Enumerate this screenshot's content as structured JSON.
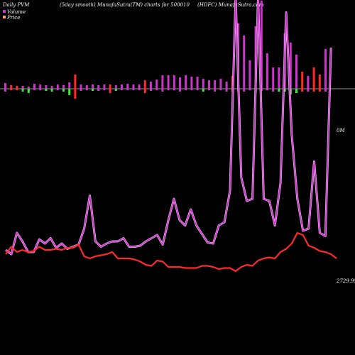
{
  "header": {
    "left": "Daily PVM",
    "center": "(5day smooth) MunafaSutra(TM) charts for 500010",
    "right": "(HDFC) MunafaSutra.com"
  },
  "legend": [
    {
      "label": "Volume",
      "color": "#cc33cc"
    },
    {
      "label": "Price",
      "color": "#ff9966"
    }
  ],
  "colors": {
    "background": "#000000",
    "volume_line": "#cc33cc",
    "volume_line_light": "#e8b4e8",
    "price_line": "#ff2a2a",
    "bar_up": "#cc33cc",
    "bar_down": "#ff2a2a",
    "bar_green": "#33ee33",
    "baseline": "#999999"
  },
  "chart_data": {
    "type": "line",
    "title": "",
    "bars": [
      {
        "top": 8,
        "bottom": 4,
        "kind": "magenta"
      },
      {
        "top": 5,
        "bottom": 2,
        "kind": "red"
      },
      {
        "top": 4,
        "bottom": 2,
        "kind": "red"
      },
      {
        "top": 4,
        "bottom": 4,
        "kind": "green"
      },
      {
        "top": 3,
        "bottom": 6,
        "kind": "green"
      },
      {
        "top": 7,
        "bottom": 2,
        "kind": "magenta"
      },
      {
        "top": 6,
        "bottom": 2,
        "kind": "magenta"
      },
      {
        "top": 5,
        "bottom": 3,
        "kind": "green"
      },
      {
        "top": 4,
        "bottom": 4,
        "kind": "green"
      },
      {
        "top": 6,
        "bottom": 2,
        "kind": "magenta"
      },
      {
        "top": 5,
        "bottom": 4,
        "kind": "green"
      },
      {
        "top": 9,
        "bottom": 9,
        "kind": "green"
      },
      {
        "top": 20,
        "bottom": 14,
        "kind": "red"
      },
      {
        "top": 6,
        "bottom": 3,
        "kind": "magenta"
      },
      {
        "top": 5,
        "bottom": 2,
        "kind": "magenta"
      },
      {
        "top": 6,
        "bottom": 3,
        "kind": "green"
      },
      {
        "top": 5,
        "bottom": 3,
        "kind": "magenta"
      },
      {
        "top": 6,
        "bottom": 2,
        "kind": "magenta"
      },
      {
        "top": 6,
        "bottom": 6,
        "kind": "red"
      },
      {
        "top": 5,
        "bottom": 3,
        "kind": "green"
      },
      {
        "top": 6,
        "bottom": 2,
        "kind": "magenta"
      },
      {
        "top": 7,
        "bottom": 2,
        "kind": "magenta"
      },
      {
        "top": 6,
        "bottom": 2,
        "kind": "magenta"
      },
      {
        "top": 6,
        "bottom": 2,
        "kind": "magenta"
      },
      {
        "top": 12,
        "bottom": 6,
        "kind": "red"
      },
      {
        "top": 10,
        "bottom": 3,
        "kind": "magenta"
      },
      {
        "top": 13,
        "bottom": 2,
        "kind": "magenta"
      },
      {
        "top": 19,
        "bottom": 4,
        "kind": "magenta"
      },
      {
        "top": 19,
        "bottom": 2,
        "kind": "magenta"
      },
      {
        "top": 19,
        "bottom": 2,
        "kind": "magenta"
      },
      {
        "top": 16,
        "bottom": 4,
        "kind": "magenta"
      },
      {
        "top": 19,
        "bottom": 2,
        "kind": "magenta"
      },
      {
        "top": 17,
        "bottom": 2,
        "kind": "magenta"
      },
      {
        "top": 17,
        "bottom": 2,
        "kind": "magenta"
      },
      {
        "top": 14,
        "bottom": 4,
        "kind": "green"
      },
      {
        "top": 12,
        "bottom": 2,
        "kind": "magenta"
      },
      {
        "top": 12,
        "bottom": 4,
        "kind": "magenta"
      },
      {
        "top": 14,
        "bottom": 2,
        "kind": "magenta"
      },
      {
        "top": 10,
        "bottom": 4,
        "kind": "magenta"
      },
      {
        "top": 18,
        "bottom": 4,
        "kind": "red"
      },
      {
        "top": 92,
        "bottom": 4,
        "kind": "magenta"
      },
      {
        "top": 75,
        "bottom": 4,
        "kind": "magenta"
      },
      {
        "top": 40,
        "bottom": 2,
        "kind": "magenta"
      },
      {
        "top": 88,
        "bottom": 6,
        "kind": "green"
      },
      {
        "top": 124,
        "bottom": 3,
        "kind": "magenta"
      },
      {
        "top": 50,
        "bottom": 2,
        "kind": "magenta"
      },
      {
        "top": 30,
        "bottom": 4,
        "kind": "magenta"
      },
      {
        "top": 30,
        "bottom": 4,
        "kind": "green"
      },
      {
        "top": 78,
        "bottom": 4,
        "kind": "green"
      },
      {
        "top": 65,
        "bottom": 8,
        "kind": "green"
      },
      {
        "top": 48,
        "bottom": 6,
        "kind": "green"
      },
      {
        "top": 24,
        "bottom": 4,
        "kind": "red"
      },
      {
        "top": 18,
        "bottom": 4,
        "kind": "magenta"
      },
      {
        "top": 30,
        "bottom": 4,
        "kind": "red"
      },
      {
        "top": 20,
        "bottom": 4,
        "kind": "red"
      },
      {
        "top": 56,
        "bottom": 4,
        "kind": "magenta"
      }
    ],
    "volume_series": [
      {
        "x": 1,
        "y": 32
      },
      {
        "x": 2,
        "y": 28
      },
      {
        "x": 3,
        "y": 48
      },
      {
        "x": 4,
        "y": 40
      },
      {
        "x": 5,
        "y": 30
      },
      {
        "x": 6,
        "y": 30
      },
      {
        "x": 7,
        "y": 42
      },
      {
        "x": 8,
        "y": 38
      },
      {
        "x": 9,
        "y": 43
      },
      {
        "x": 10,
        "y": 34
      },
      {
        "x": 11,
        "y": 38
      },
      {
        "x": 12,
        "y": 33
      },
      {
        "x": 13,
        "y": 35
      },
      {
        "x": 14,
        "y": 37
      },
      {
        "x": 15,
        "y": 52
      },
      {
        "x": 16,
        "y": 83
      },
      {
        "x": 17,
        "y": 40
      },
      {
        "x": 18,
        "y": 35
      },
      {
        "x": 19,
        "y": 38
      },
      {
        "x": 20,
        "y": 40
      },
      {
        "x": 21,
        "y": 40
      },
      {
        "x": 22,
        "y": 43
      },
      {
        "x": 23,
        "y": 35
      },
      {
        "x": 24,
        "y": 35
      },
      {
        "x": 25,
        "y": 36
      },
      {
        "x": 26,
        "y": 40
      },
      {
        "x": 27,
        "y": 43
      },
      {
        "x": 28,
        "y": 46
      },
      {
        "x": 29,
        "y": 37
      },
      {
        "x": 30,
        "y": 60
      },
      {
        "x": 31,
        "y": 80
      },
      {
        "x": 32,
        "y": 60
      },
      {
        "x": 33,
        "y": 55
      },
      {
        "x": 34,
        "y": 70
      },
      {
        "x": 35,
        "y": 55
      },
      {
        "x": 36,
        "y": 47
      },
      {
        "x": 37,
        "y": 39
      },
      {
        "x": 38,
        "y": 38
      },
      {
        "x": 39,
        "y": 55
      },
      {
        "x": 40,
        "y": 58
      },
      {
        "x": 41,
        "y": 88
      },
      {
        "x": 42,
        "y": 270
      },
      {
        "x": 43,
        "y": 100
      },
      {
        "x": 44,
        "y": 78
      },
      {
        "x": 45,
        "y": 80
      },
      {
        "x": 46,
        "y": 270
      },
      {
        "x": 47,
        "y": 80
      },
      {
        "x": 48,
        "y": 78
      },
      {
        "x": 49,
        "y": 55
      },
      {
        "x": 50,
        "y": 95
      },
      {
        "x": 51,
        "y": 255
      },
      {
        "x": 52,
        "y": 140
      },
      {
        "x": 53,
        "y": 80
      },
      {
        "x": 54,
        "y": 50
      },
      {
        "x": 55,
        "y": 52
      },
      {
        "x": 56,
        "y": 115
      },
      {
        "x": 57,
        "y": 48
      },
      {
        "x": 58,
        "y": 45
      },
      {
        "x": 59,
        "y": 222
      }
    ],
    "price_series": [
      {
        "x": 1,
        "y": 28
      },
      {
        "x": 2,
        "y": 35
      },
      {
        "x": 3,
        "y": 30
      },
      {
        "x": 4,
        "y": 32
      },
      {
        "x": 5,
        "y": 30
      },
      {
        "x": 6,
        "y": 31
      },
      {
        "x": 7,
        "y": 35
      },
      {
        "x": 8,
        "y": 32
      },
      {
        "x": 9,
        "y": 32
      },
      {
        "x": 10,
        "y": 33
      },
      {
        "x": 11,
        "y": 32
      },
      {
        "x": 12,
        "y": 34
      },
      {
        "x": 13,
        "y": 34
      },
      {
        "x": 14,
        "y": 37
      },
      {
        "x": 15,
        "y": 26
      },
      {
        "x": 16,
        "y": 24
      },
      {
        "x": 17,
        "y": 26
      },
      {
        "x": 18,
        "y": 27
      },
      {
        "x": 19,
        "y": 28
      },
      {
        "x": 20,
        "y": 30
      },
      {
        "x": 21,
        "y": 24
      },
      {
        "x": 22,
        "y": 24
      },
      {
        "x": 23,
        "y": 24
      },
      {
        "x": 24,
        "y": 23
      },
      {
        "x": 25,
        "y": 21
      },
      {
        "x": 26,
        "y": 18
      },
      {
        "x": 27,
        "y": 17
      },
      {
        "x": 28,
        "y": 22
      },
      {
        "x": 29,
        "y": 21
      },
      {
        "x": 30,
        "y": 16
      },
      {
        "x": 31,
        "y": 16
      },
      {
        "x": 32,
        "y": 16
      },
      {
        "x": 33,
        "y": 15
      },
      {
        "x": 34,
        "y": 15
      },
      {
        "x": 35,
        "y": 15
      },
      {
        "x": 36,
        "y": 17
      },
      {
        "x": 37,
        "y": 17
      },
      {
        "x": 38,
        "y": 16
      },
      {
        "x": 39,
        "y": 14
      },
      {
        "x": 40,
        "y": 15
      },
      {
        "x": 41,
        "y": 15
      },
      {
        "x": 42,
        "y": 12
      },
      {
        "x": 43,
        "y": 16
      },
      {
        "x": 44,
        "y": 18
      },
      {
        "x": 45,
        "y": 17
      },
      {
        "x": 46,
        "y": 22
      },
      {
        "x": 47,
        "y": 24
      },
      {
        "x": 48,
        "y": 25
      },
      {
        "x": 49,
        "y": 24
      },
      {
        "x": 50,
        "y": 30
      },
      {
        "x": 51,
        "y": 33
      },
      {
        "x": 52,
        "y": 38
      },
      {
        "x": 53,
        "y": 48
      },
      {
        "x": 54,
        "y": 46
      },
      {
        "x": 55,
        "y": 36
      },
      {
        "x": 56,
        "y": 34
      },
      {
        "x": 57,
        "y": 31
      },
      {
        "x": 58,
        "y": 30
      },
      {
        "x": 59,
        "y": 28
      },
      {
        "x": 60,
        "y": 24
      }
    ],
    "labels": {
      "volume_last": "0M",
      "price_last": "2729.95"
    }
  }
}
